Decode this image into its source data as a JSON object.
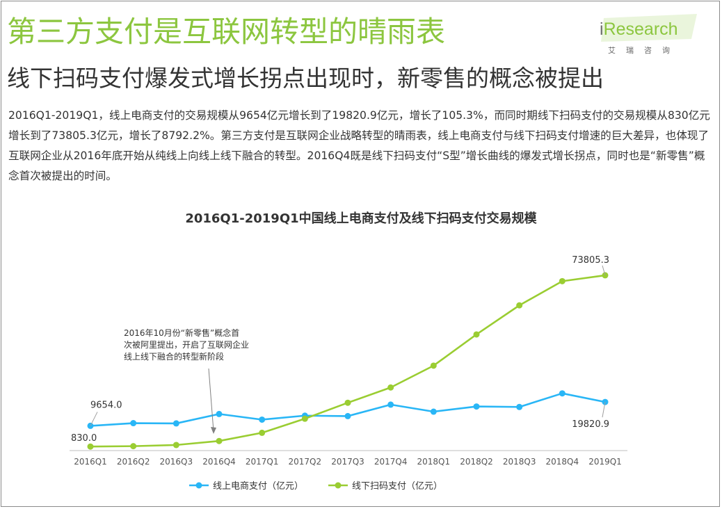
{
  "header": {
    "title": "第三方支付是互联网转型的晴雨表",
    "subtitle": "线下扫码支付爆发式增长拐点出现时，新零售的概念被提出"
  },
  "logo": {
    "brand_prefix": "i",
    "brand_name": "Research",
    "sub_text": "艾瑞咨询"
  },
  "body_text": "2016Q1-2019Q1，线上电商支付的交易规模从9654亿元增长到了19820.9亿元，增长了105.3%，而同时期线下扫码支付的交易规模从830亿元增长到了73805.3亿元，增长了8792.2%。第三方支付是互联网企业战略转型的晴雨表，线上电商支付与线下扫码支付增速的巨大差异，也体现了互联网企业从2016年底开始从纯线上向线上线下融合的转型。2016Q4既是线下扫码支付“S型”增长曲线的爆发式增长拐点，同时也是“新零售”概念首次被提出的时间。",
  "colors": {
    "title": "#8cc63f",
    "online_series": "#29b6f6",
    "offline_series": "#9acd32",
    "text": "#333333"
  },
  "chart_data": {
    "type": "line",
    "title": "2016Q1-2019Q1中国线上电商支付及线下扫码支付交易规模",
    "categories": [
      "2016Q1",
      "2016Q2",
      "2016Q3",
      "2016Q4",
      "2017Q1",
      "2017Q2",
      "2017Q3",
      "2017Q4",
      "2018Q1",
      "2018Q2",
      "2018Q3",
      "2018Q4",
      "2019Q1"
    ],
    "series": [
      {
        "name": "线上电商支付（亿元）",
        "color": "#29b6f6",
        "values": [
          9654.0,
          10800,
          10700,
          14700,
          12300,
          14000,
          13800,
          18700,
          15700,
          17900,
          17700,
          23500,
          19820.9
        ]
      },
      {
        "name": "线下扫码支付（亿元）",
        "color": "#9acd32",
        "values": [
          830.0,
          1000,
          1500,
          3200,
          6700,
          12700,
          19500,
          26000,
          35300,
          48600,
          61000,
          71300,
          73805.3
        ]
      }
    ],
    "data_labels": [
      {
        "series": 0,
        "index": 0,
        "text": "9654.0"
      },
      {
        "series": 1,
        "index": 0,
        "text": "830.0"
      },
      {
        "series": 1,
        "index": 12,
        "text": "73805.3"
      },
      {
        "series": 0,
        "index": 12,
        "text": "19820.9"
      }
    ],
    "annotation": {
      "lines": [
        "2016年10月份“新零售”概念首",
        "次被阿里提出，开启了互联网企业",
        "线上线下融合的转型新阶段"
      ],
      "category_index": 3
    },
    "ylim": [
      0,
      80000
    ],
    "grid": false,
    "legend_position": "bottom"
  }
}
